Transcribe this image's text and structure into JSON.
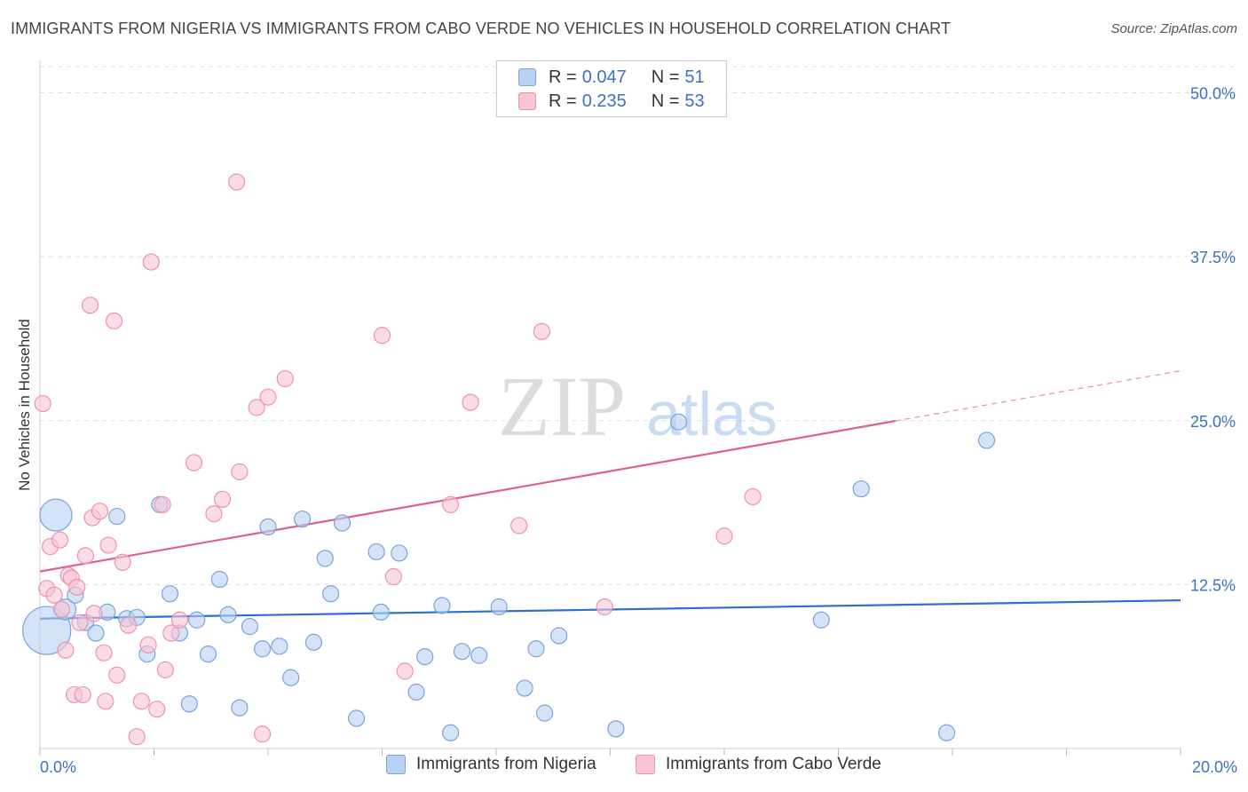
{
  "title": "IMMIGRANTS FROM NIGERIA VS IMMIGRANTS FROM CABO VERDE NO VEHICLES IN HOUSEHOLD CORRELATION CHART",
  "source": "Source: ZipAtlas.com",
  "watermark": {
    "zip": "ZIP",
    "atlas": "atlas"
  },
  "legend_top": {
    "rows": [
      {
        "r_label": "R =",
        "r_value": "0.047",
        "n_label": "N =",
        "n_value": "51"
      },
      {
        "r_label": "R =",
        "r_value": "0.235",
        "n_label": "N =",
        "n_value": "53"
      }
    ]
  },
  "legend_bottom": {
    "items": [
      "Immigrants from Nigeria",
      "Immigrants from Cabo Verde"
    ]
  },
  "colors": {
    "nigeria_fill": "#b8d0f2",
    "nigeria_stroke": "#7aa3dc",
    "nigeria_line": "#2e6fd0",
    "cabo_fill": "#f9c5d4",
    "cabo_stroke": "#ec93ad",
    "cabo_line": "#e0608a",
    "tick_label": "#3a72c4",
    "grid": "#dddddd"
  },
  "chart_data": {
    "type": "scatter",
    "title": "IMMIGRANTS FROM NIGERIA VS IMMIGRANTS FROM CABO VERDE NO VEHICLES IN HOUSEHOLD CORRELATION CHART",
    "xlabel": "",
    "ylabel": "No Vehicles in Household",
    "xlim": [
      0,
      20
    ],
    "ylim": [
      0,
      52
    ],
    "x_tick_labels": [
      "0.0%",
      "20.0%"
    ],
    "y_ticks": [
      12.5,
      25.0,
      37.5,
      50.0
    ],
    "y_tick_labels": [
      "12.5%",
      "25.0%",
      "37.5%",
      "50.0%"
    ],
    "grid": true,
    "legend_position": "top-center",
    "series": [
      {
        "name": "Immigrants from Nigeria",
        "R": 0.047,
        "N": 51,
        "trend": {
          "x": [
            0,
            20
          ],
          "y": [
            9.9,
            11.3
          ],
          "dashed_from": null
        },
        "points": [
          [
            0.12,
            9.0,
            3
          ],
          [
            0.28,
            17.8,
            2
          ],
          [
            0.45,
            10.6,
            1.3
          ],
          [
            0.62,
            11.7,
            1
          ],
          [
            0.8,
            9.6,
            1
          ],
          [
            0.98,
            8.8,
            1
          ],
          [
            1.18,
            10.4,
            1
          ],
          [
            1.35,
            17.7,
            1
          ],
          [
            1.52,
            9.9,
            1
          ],
          [
            1.7,
            10.0,
            1
          ],
          [
            1.88,
            7.2,
            1
          ],
          [
            2.1,
            18.6,
            1
          ],
          [
            2.28,
            11.8,
            1
          ],
          [
            2.45,
            8.8,
            1
          ],
          [
            2.62,
            3.4,
            1
          ],
          [
            2.75,
            9.8,
            1
          ],
          [
            2.95,
            7.2,
            1
          ],
          [
            3.15,
            12.9,
            1
          ],
          [
            3.3,
            10.2,
            1
          ],
          [
            3.5,
            3.1,
            1
          ],
          [
            3.68,
            9.3,
            1
          ],
          [
            3.9,
            7.6,
            1
          ],
          [
            4.0,
            16.9,
            1
          ],
          [
            4.2,
            7.8,
            1
          ],
          [
            4.4,
            5.4,
            1
          ],
          [
            4.6,
            17.5,
            1
          ],
          [
            4.8,
            8.1,
            1
          ],
          [
            5.0,
            14.5,
            1
          ],
          [
            5.1,
            11.8,
            1
          ],
          [
            5.3,
            17.2,
            1
          ],
          [
            5.55,
            2.3,
            1
          ],
          [
            5.9,
            15.0,
            1
          ],
          [
            5.98,
            10.4,
            1
          ],
          [
            6.3,
            14.9,
            1
          ],
          [
            6.6,
            4.3,
            1
          ],
          [
            6.75,
            7.0,
            1
          ],
          [
            7.05,
            10.9,
            1
          ],
          [
            7.2,
            1.2,
            1
          ],
          [
            7.4,
            7.4,
            1
          ],
          [
            7.7,
            7.1,
            1
          ],
          [
            8.05,
            10.8,
            1
          ],
          [
            8.5,
            4.6,
            1
          ],
          [
            8.7,
            7.6,
            1
          ],
          [
            8.85,
            2.7,
            1
          ],
          [
            9.1,
            8.6,
            1
          ],
          [
            10.1,
            1.5,
            1
          ],
          [
            11.2,
            24.9,
            1
          ],
          [
            13.7,
            9.8,
            1
          ],
          [
            14.4,
            19.8,
            1
          ],
          [
            15.9,
            1.2,
            1
          ],
          [
            16.6,
            23.5,
            1
          ]
        ]
      },
      {
        "name": "Immigrants from Cabo Verde",
        "R": 0.235,
        "N": 53,
        "trend": {
          "x": [
            0,
            20
          ],
          "y": [
            13.5,
            28.8
          ],
          "dashed_from": 15.0
        },
        "points": [
          [
            0.05,
            26.3,
            1
          ],
          [
            0.12,
            12.2,
            1
          ],
          [
            0.18,
            15.4,
            1
          ],
          [
            0.25,
            11.7,
            1
          ],
          [
            0.35,
            15.9,
            1
          ],
          [
            0.38,
            10.6,
            1
          ],
          [
            0.45,
            7.5,
            1
          ],
          [
            0.5,
            13.2,
            1
          ],
          [
            0.55,
            13.0,
            1
          ],
          [
            0.6,
            4.1,
            1
          ],
          [
            0.65,
            12.3,
            1
          ],
          [
            0.7,
            9.6,
            1
          ],
          [
            0.75,
            4.1,
            1
          ],
          [
            0.8,
            14.7,
            1
          ],
          [
            0.88,
            33.8,
            1
          ],
          [
            0.92,
            17.6,
            1
          ],
          [
            0.95,
            10.3,
            1
          ],
          [
            1.05,
            18.1,
            1
          ],
          [
            1.12,
            7.3,
            1
          ],
          [
            1.15,
            3.6,
            1
          ],
          [
            1.2,
            15.5,
            1
          ],
          [
            1.3,
            32.6,
            1
          ],
          [
            1.35,
            5.6,
            1
          ],
          [
            1.45,
            14.2,
            1
          ],
          [
            1.55,
            9.4,
            1
          ],
          [
            1.7,
            0.9,
            1
          ],
          [
            1.78,
            3.6,
            1
          ],
          [
            1.9,
            7.9,
            1
          ],
          [
            1.95,
            37.1,
            1
          ],
          [
            2.05,
            3.0,
            1
          ],
          [
            2.15,
            18.6,
            1
          ],
          [
            2.2,
            6.0,
            1
          ],
          [
            2.3,
            8.8,
            1
          ],
          [
            2.45,
            9.8,
            1
          ],
          [
            2.7,
            21.8,
            1
          ],
          [
            3.05,
            17.9,
            1
          ],
          [
            3.2,
            19.0,
            1
          ],
          [
            3.5,
            21.1,
            1
          ],
          [
            3.45,
            43.2,
            1
          ],
          [
            3.8,
            26.0,
            1
          ],
          [
            4.0,
            26.8,
            1
          ],
          [
            4.3,
            28.2,
            1
          ],
          [
            3.9,
            1.1,
            1
          ],
          [
            6.0,
            31.5,
            1
          ],
          [
            6.2,
            13.1,
            1
          ],
          [
            6.4,
            5.9,
            1
          ],
          [
            7.2,
            18.6,
            1
          ],
          [
            7.55,
            26.4,
            1
          ],
          [
            8.4,
            17.0,
            1
          ],
          [
            8.8,
            31.8,
            1
          ],
          [
            9.9,
            10.8,
            1
          ],
          [
            12.0,
            16.2,
            1
          ],
          [
            12.5,
            19.2,
            1
          ]
        ]
      }
    ]
  }
}
